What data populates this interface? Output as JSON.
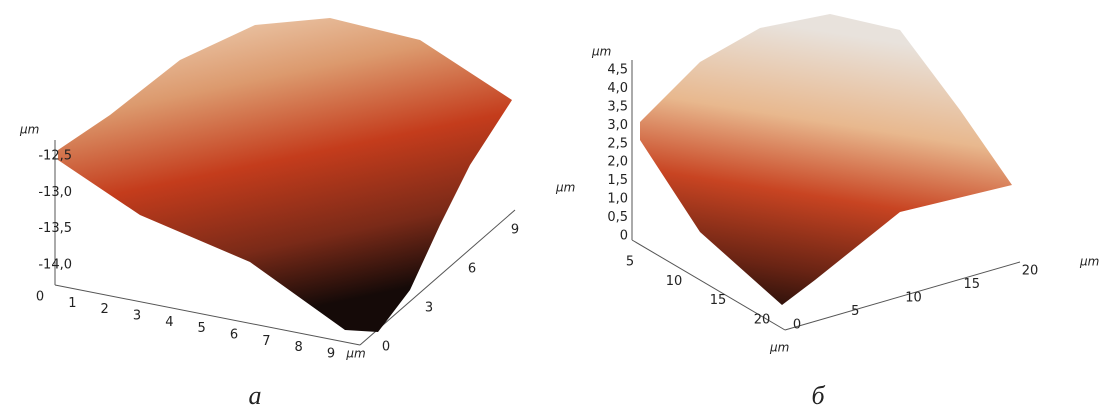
{
  "panels": [
    {
      "caption": "а",
      "z_unit": "µm",
      "z_ticks": [
        "-12,5",
        "-13,0",
        "-13,5",
        "-14,0"
      ],
      "x_ticks": [
        "0",
        "1",
        "2",
        "3",
        "4",
        "5",
        "6",
        "7",
        "8",
        "9"
      ],
      "x_unit": "µm",
      "y_ticks": [
        "0",
        "3",
        "6",
        "9"
      ]
    },
    {
      "caption": "б",
      "z_unit": "µm",
      "z_ticks": [
        "0",
        "0,5",
        "1,0",
        "1,5",
        "2,0",
        "2,5",
        "3,0",
        "3,5",
        "4,0",
        "4,5"
      ],
      "side_unit": "µm",
      "left_ticks": [
        "5",
        "10",
        "15",
        "20"
      ],
      "left_unit": "µm",
      "right_ticks": [
        "0",
        "5",
        "10",
        "15",
        "20"
      ],
      "right_unit": "µm"
    }
  ]
}
